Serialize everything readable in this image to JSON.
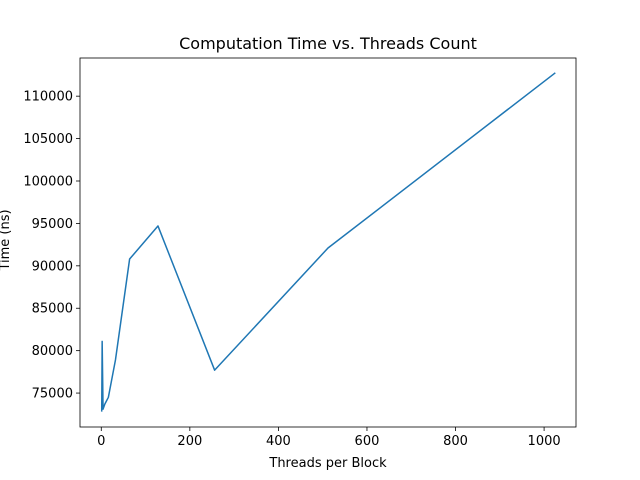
{
  "chart_data": {
    "type": "line",
    "title": "Computation Time vs. Threads Count",
    "xlabel": "Threads per Block",
    "ylabel": "Time (ns)",
    "xlim": [
      -48.05,
      1072.05
    ],
    "ylim": [
      71000,
      114500
    ],
    "xticks": [
      0,
      200,
      400,
      600,
      800,
      1000
    ],
    "yticks": [
      75000,
      80000,
      85000,
      90000,
      95000,
      100000,
      105000,
      110000
    ],
    "grid": false,
    "series": [
      {
        "color": "#1f77b4",
        "x": [
          1,
          2,
          4,
          8,
          16,
          32,
          64,
          128,
          256,
          512,
          1024
        ],
        "y": [
          72900,
          81100,
          73100,
          73700,
          74500,
          78900,
          90800,
          94700,
          77700,
          92100,
          112700
        ]
      }
    ]
  }
}
